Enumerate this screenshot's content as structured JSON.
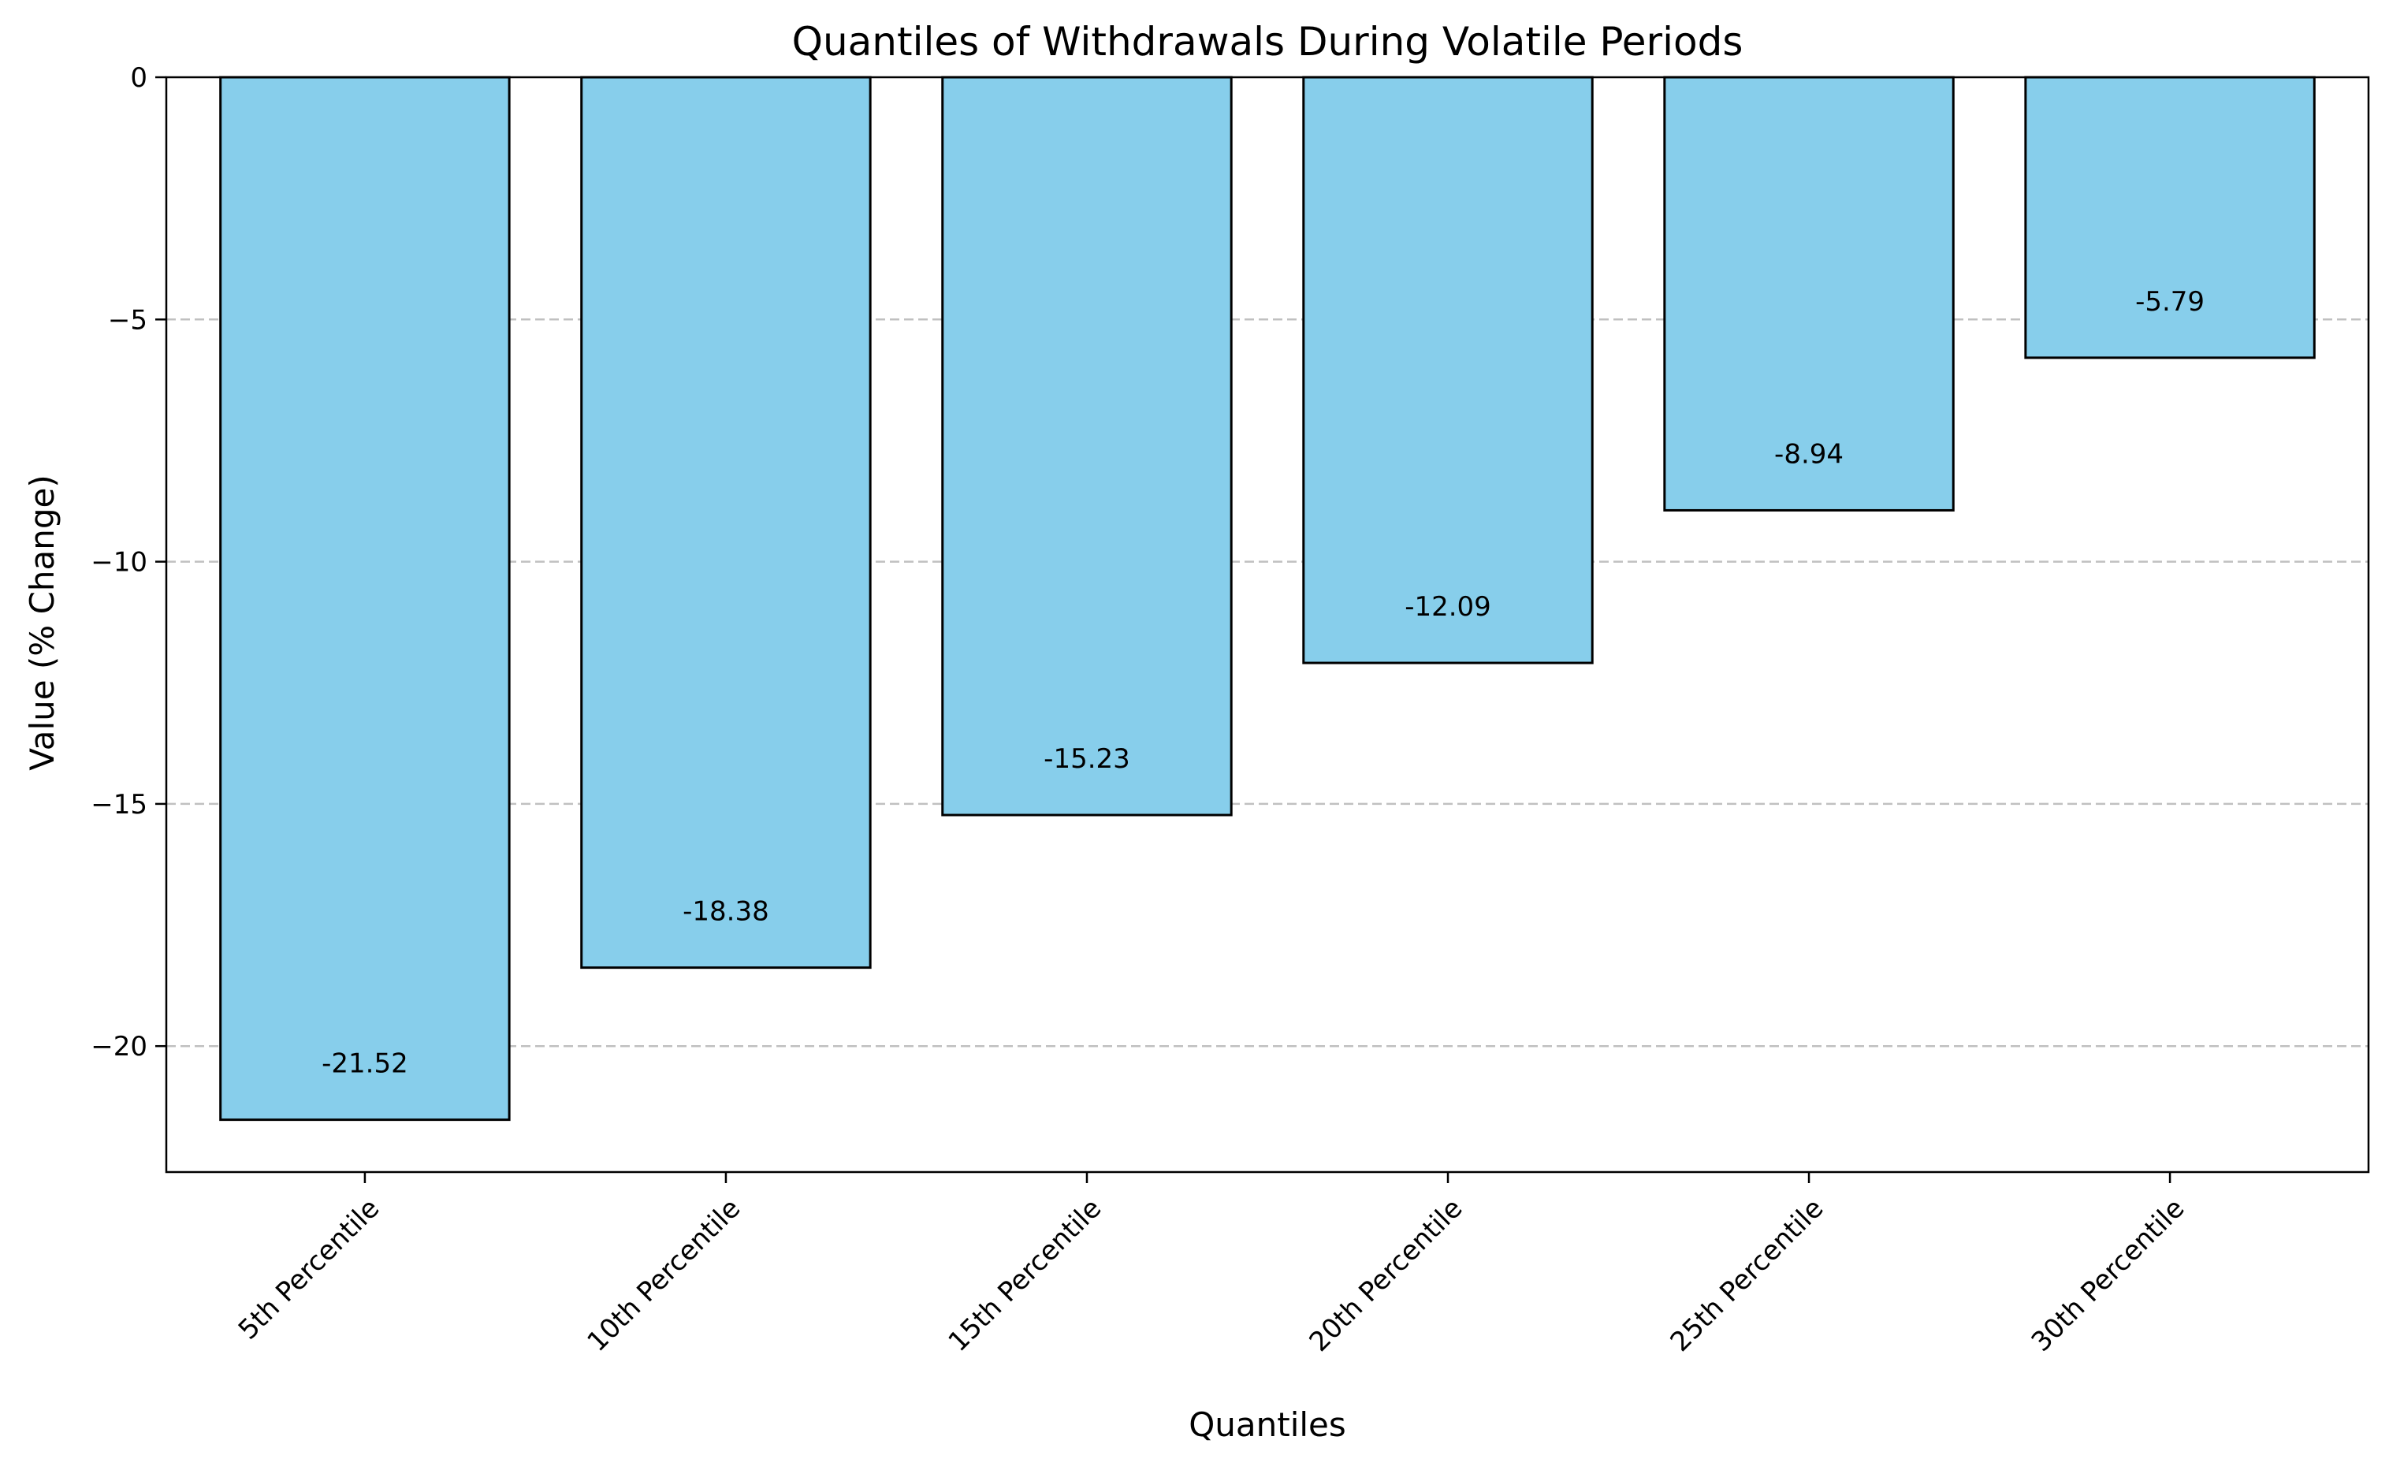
{
  "chart_data": {
    "type": "bar",
    "title": "Quantiles of Withdrawals During Volatile Periods",
    "xlabel": "Quantiles",
    "ylabel": "Value (% Change)",
    "categories": [
      "5th Percentile",
      "10th Percentile",
      "15th Percentile",
      "20th Percentile",
      "25th Percentile",
      "30th Percentile"
    ],
    "values": [
      -21.52,
      -18.38,
      -15.23,
      -12.09,
      -8.94,
      -5.79
    ],
    "data_labels": [
      "-21.52",
      "-18.38",
      "-15.23",
      "-12.09",
      "-8.94",
      "-5.79"
    ],
    "yticks": [
      0,
      -5,
      -10,
      -15,
      -20
    ],
    "ytick_labels": [
      "0",
      "−5",
      "−10",
      "−15",
      "−20"
    ],
    "ylim": [
      -22.6,
      0
    ],
    "grid": "y, dashed",
    "legend": "none",
    "colors": {
      "bar_fill": "#87CEEB",
      "bar_edge": "#000000",
      "grid": "#c0c0c0"
    }
  }
}
